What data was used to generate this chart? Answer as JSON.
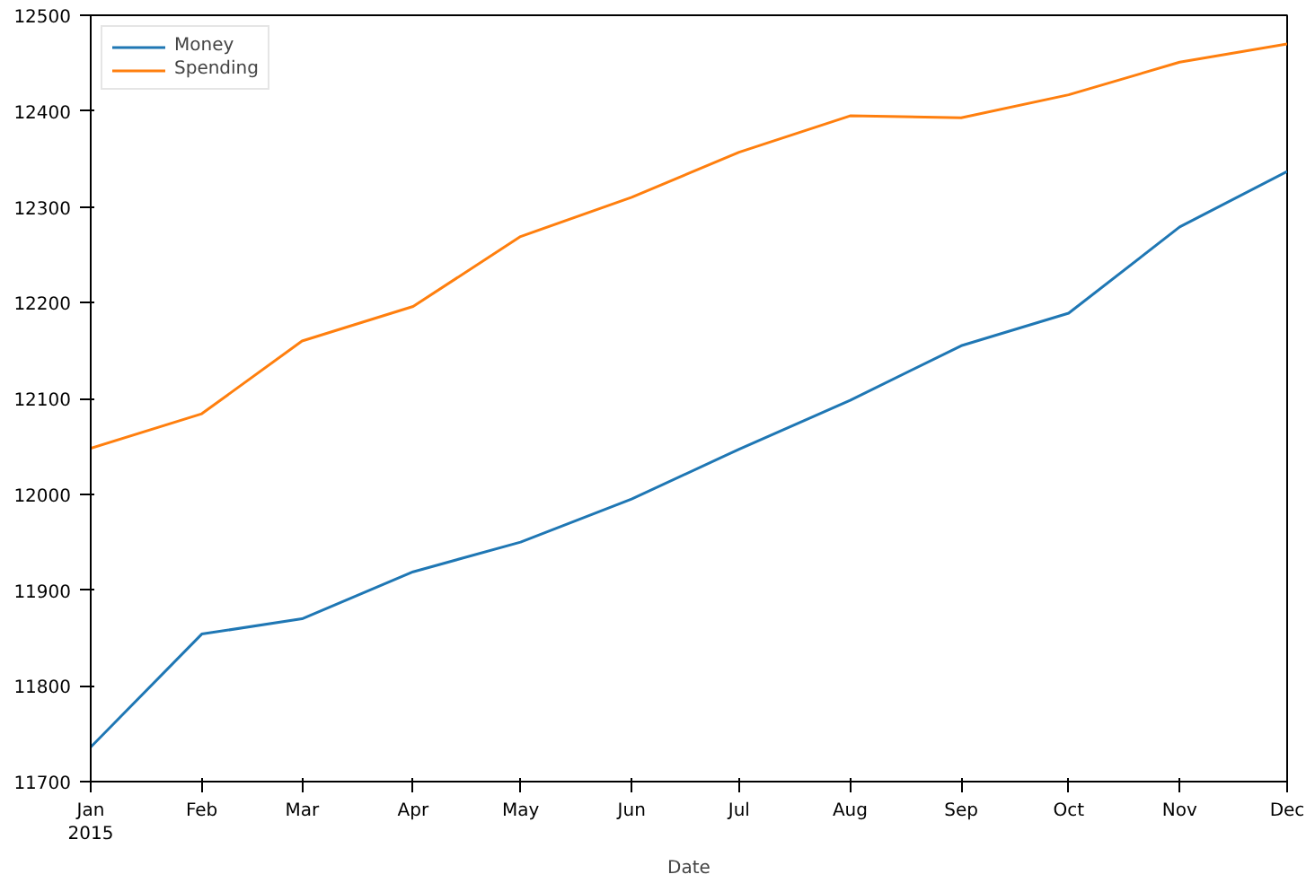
{
  "chart_data": {
    "type": "line",
    "xlabel": "Date",
    "x": [
      "2015-01",
      "2015-02",
      "2015-03",
      "2015-04",
      "2015-05",
      "2015-06",
      "2015-07",
      "2015-08",
      "2015-09",
      "2015-10",
      "2015-11",
      "2015-12"
    ],
    "series": [
      {
        "name": "Money",
        "color": "#1f77b4",
        "values": [
          11736,
          11854,
          11870,
          11919,
          11950,
          11995,
          12047,
          12098,
          12155,
          12189,
          12279,
          12337
        ]
      },
      {
        "name": "Spending",
        "color": "#ff7f0e",
        "values": [
          12048,
          12084,
          12160,
          12196,
          12269,
          12310,
          12357,
          12395,
          12393,
          12417,
          12451,
          12470
        ]
      }
    ],
    "xlim": [
      "2015-01",
      "2015-12"
    ],
    "xticks": [
      {
        "value": "2015-01",
        "label": "Jan\n2015"
      },
      {
        "value": "2015-02",
        "label": "Feb"
      },
      {
        "value": "2015-03",
        "label": "Mar"
      },
      {
        "value": "2015-04",
        "label": "Apr"
      },
      {
        "value": "2015-05",
        "label": "May"
      },
      {
        "value": "2015-06",
        "label": "Jun"
      },
      {
        "value": "2015-07",
        "label": "Jul"
      },
      {
        "value": "2015-08",
        "label": "Aug"
      },
      {
        "value": "2015-09",
        "label": "Sep"
      },
      {
        "value": "2015-10",
        "label": "Oct"
      },
      {
        "value": "2015-11",
        "label": "Nov"
      },
      {
        "value": "2015-12",
        "label": "Dec"
      }
    ],
    "ylim": [
      11700,
      12500
    ],
    "yticks": [
      11700,
      11800,
      11900,
      12000,
      12100,
      12200,
      12300,
      12400,
      12500
    ],
    "grid": false,
    "legend": "top left",
    "line_style": "solid",
    "marker": "none"
  }
}
